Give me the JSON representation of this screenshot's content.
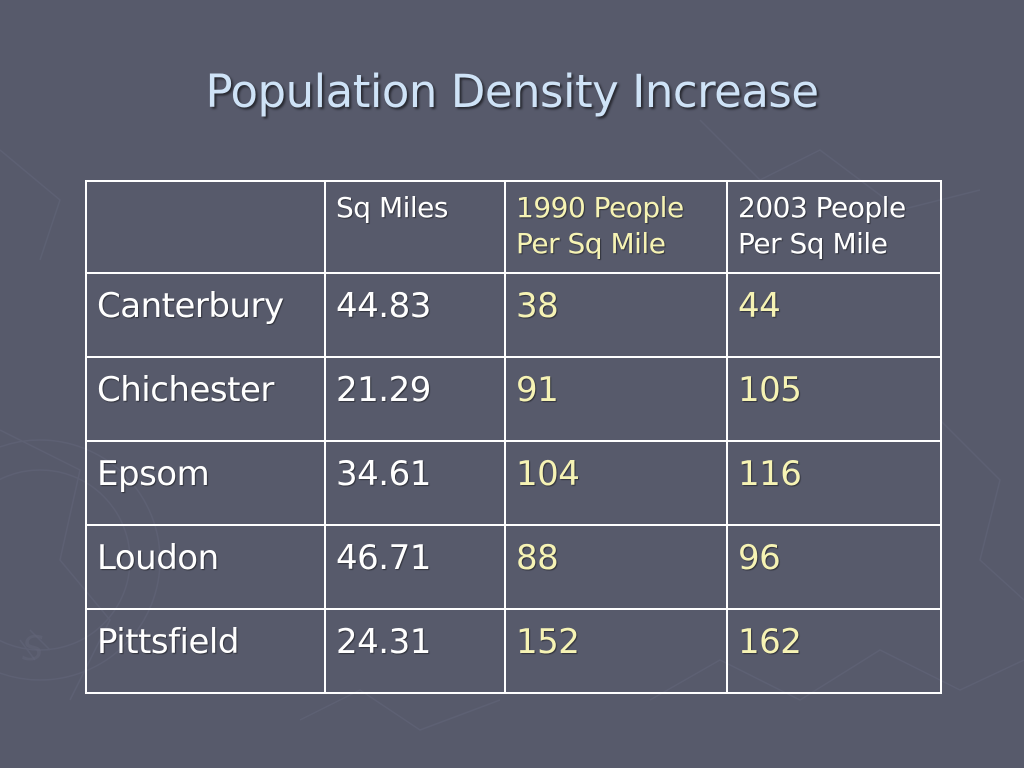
{
  "slide": {
    "title": "Population Density Increase"
  },
  "table": {
    "headers": [
      "",
      "Sq Miles",
      "1990 People Per Sq Mile",
      "2003 People Per Sq Mile"
    ],
    "rows": [
      {
        "town": "Canterbury",
        "sq_miles": "44.83",
        "density_1990": "38",
        "density_2003": "44"
      },
      {
        "town": "Chichester",
        "sq_miles": "21.29",
        "density_1990": "91",
        "density_2003": "105"
      },
      {
        "town": "Epsom",
        "sq_miles": "34.61",
        "density_1990": "104",
        "density_2003": "116"
      },
      {
        "town": "Loudon",
        "sq_miles": "46.71",
        "density_1990": "88",
        "density_2003": "96"
      },
      {
        "town": "Pittsfield",
        "sq_miles": "24.31",
        "density_1990": "152",
        "density_2003": "162"
      }
    ]
  },
  "colors": {
    "background": "#575a6b",
    "title": "#cfe3f7",
    "text_white": "#ffffff",
    "text_yellow": "#f6f3b4",
    "border": "#ffffff"
  }
}
